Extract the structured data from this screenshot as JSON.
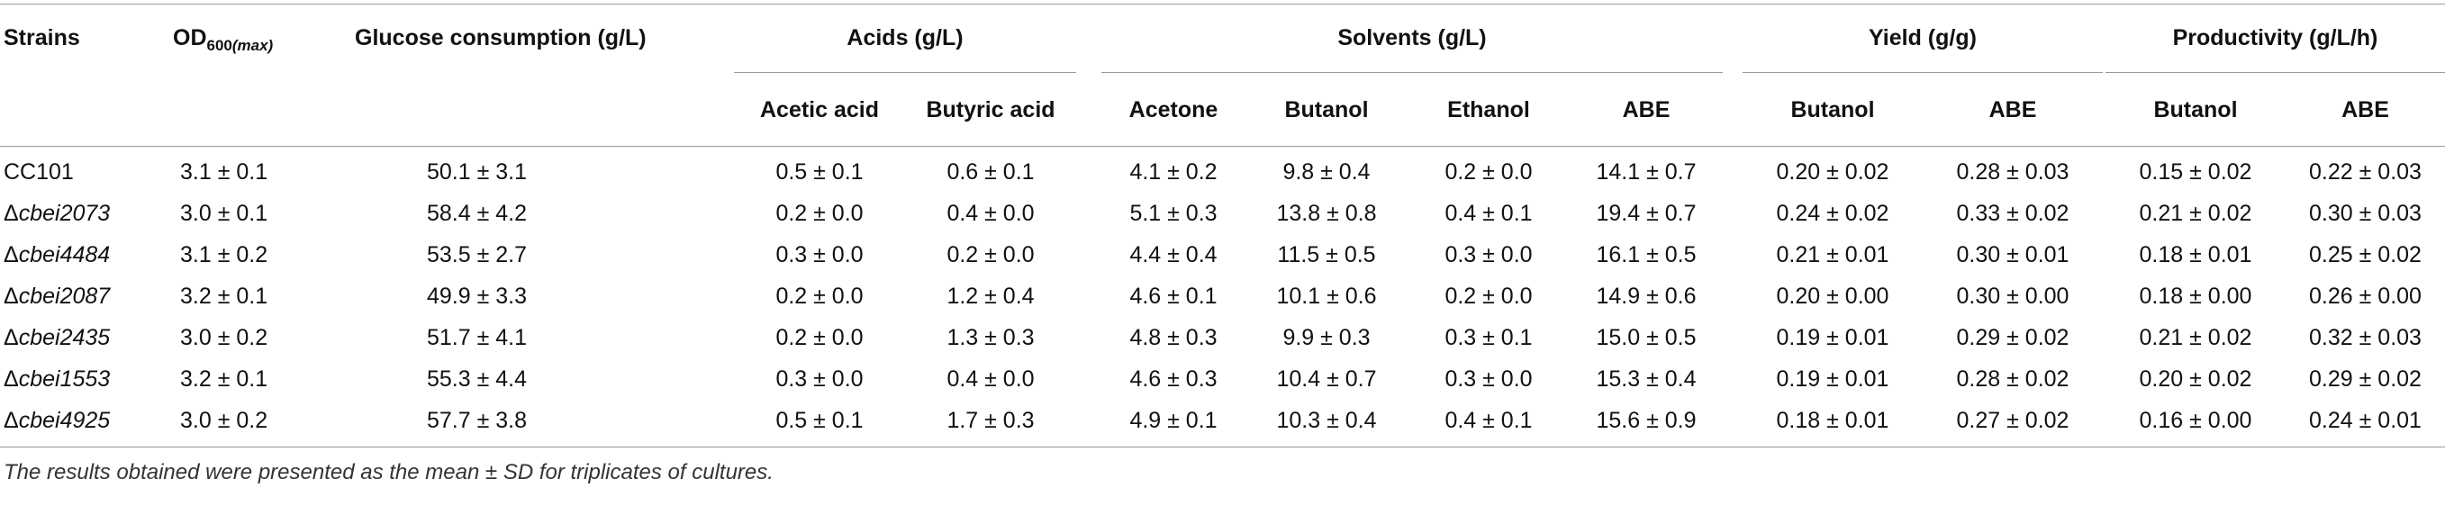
{
  "header": {
    "strains": "Strains",
    "od_main": "OD",
    "od_sub_num": "600",
    "od_sub_max": "(max)",
    "glucose": "Glucose consumption (g/L)",
    "acids": "Acids (g/L)",
    "solvents": "Solvents (g/L)",
    "yield": "Yield (g/g)",
    "productivity": "Productivity (g/L/h)",
    "sub": [
      "Acetic acid",
      "Butyric acid",
      "Acetone",
      "Butanol",
      "Ethanol",
      "ABE",
      "Butanol",
      "ABE",
      "Butanol",
      "ABE"
    ]
  },
  "rows": [
    {
      "prefix": "",
      "strain": "CC101",
      "italic": false,
      "values": [
        "3.1 ± 0.1",
        "50.1 ± 3.1",
        "0.5 ± 0.1",
        "0.6 ± 0.1",
        "4.1 ± 0.2",
        "9.8 ± 0.4",
        "0.2 ± 0.0",
        "14.1 ± 0.7",
        "0.20 ± 0.02",
        "0.28 ± 0.03",
        "0.15 ± 0.02",
        "0.22 ± 0.03"
      ]
    },
    {
      "prefix": "Δ",
      "strain": "cbei2073",
      "italic": true,
      "values": [
        "3.0 ± 0.1",
        "58.4 ± 4.2",
        "0.2 ± 0.0",
        "0.4 ± 0.0",
        "5.1 ± 0.3",
        "13.8 ± 0.8",
        "0.4 ± 0.1",
        "19.4 ± 0.7",
        "0.24 ± 0.02",
        "0.33 ± 0.02",
        "0.21 ± 0.02",
        "0.30 ± 0.03"
      ]
    },
    {
      "prefix": "Δ",
      "strain": "cbei4484",
      "italic": true,
      "values": [
        "3.1 ± 0.2",
        "53.5 ± 2.7",
        "0.3 ± 0.0",
        "0.2 ± 0.0",
        "4.4 ± 0.4",
        "11.5 ± 0.5",
        "0.3 ± 0.0",
        "16.1 ± 0.5",
        "0.21 ± 0.01",
        "0.30 ± 0.01",
        "0.18 ± 0.01",
        "0.25 ± 0.02"
      ]
    },
    {
      "prefix": "Δ",
      "strain": "cbei2087",
      "italic": true,
      "values": [
        "3.2 ± 0.1",
        "49.9 ± 3.3",
        "0.2 ± 0.0",
        "1.2 ± 0.4",
        "4.6 ± 0.1",
        "10.1 ± 0.6",
        "0.2 ± 0.0",
        "14.9 ± 0.6",
        "0.20 ± 0.00",
        "0.30 ± 0.00",
        "0.18 ± 0.00",
        "0.26 ± 0.00"
      ]
    },
    {
      "prefix": "Δ",
      "strain": "cbei2435",
      "italic": true,
      "values": [
        "3.0 ± 0.2",
        "51.7 ± 4.1",
        "0.2 ± 0.0",
        "1.3 ± 0.3",
        "4.8 ± 0.3",
        "9.9 ± 0.3",
        "0.3 ± 0.1",
        "15.0 ± 0.5",
        "0.19 ± 0.01",
        "0.29 ± 0.02",
        "0.21 ± 0.02",
        "0.32 ± 0.03"
      ]
    },
    {
      "prefix": "Δ",
      "strain": "cbei1553",
      "italic": true,
      "values": [
        "3.2 ± 0.1",
        "55.3 ± 4.4",
        "0.3 ± 0.0",
        "0.4 ± 0.0",
        "4.6 ± 0.3",
        "10.4 ± 0.7",
        "0.3 ± 0.0",
        "15.3 ± 0.4",
        "0.19 ± 0.01",
        "0.28 ± 0.02",
        "0.20 ± 0.02",
        "0.29 ± 0.02"
      ]
    },
    {
      "prefix": "Δ",
      "strain": "cbei4925",
      "italic": true,
      "values": [
        "3.0 ± 0.2",
        "57.7 ± 3.8",
        "0.5 ± 0.1",
        "1.7 ± 0.3",
        "4.9 ± 0.1",
        "10.3 ± 0.4",
        "0.4 ± 0.1",
        "15.6 ± 0.9",
        "0.18 ± 0.01",
        "0.27 ± 0.02",
        "0.16 ± 0.00",
        "0.24 ± 0.01"
      ]
    }
  ],
  "footnote": "The results obtained were presented as the mean ± SD for triplicates of cultures."
}
